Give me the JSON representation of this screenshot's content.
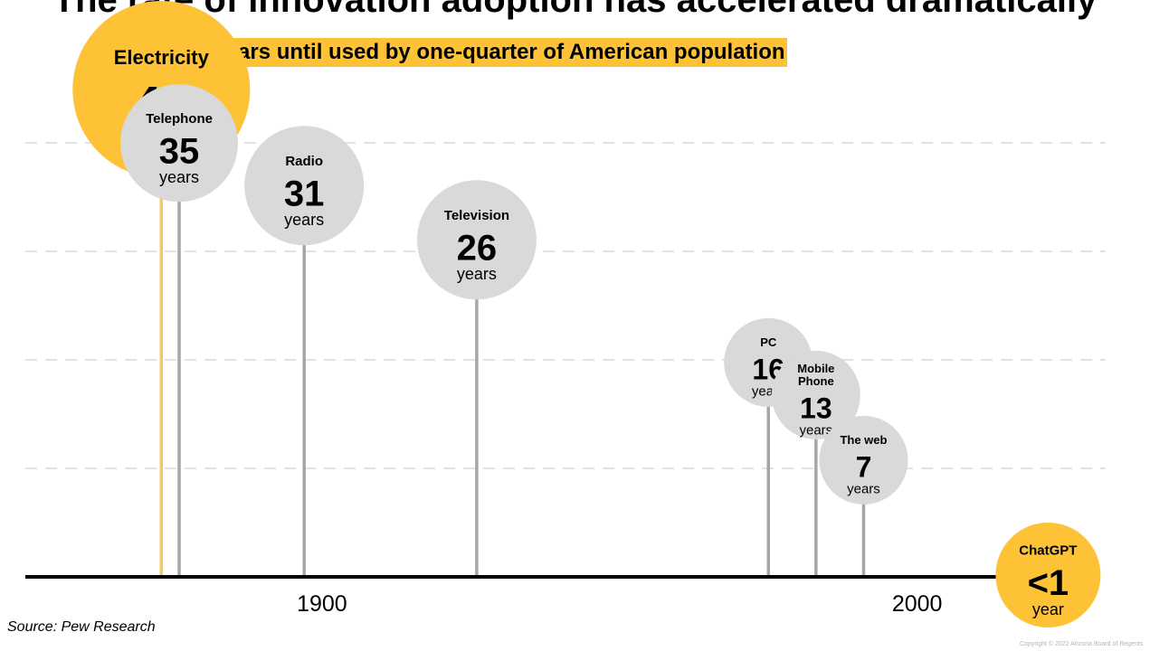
{
  "title": "The rate of innovation adoption has accelerated dramatically",
  "subtitle": "Years until used by one-quarter of American population",
  "source": "Source: Pew Research",
  "copyright": "Copyright © 2022 Arizona Board of Regents",
  "colors": {
    "highlight": "#fdc236",
    "bubble": "#d9d9d9",
    "stem": "#a6a6a6",
    "highlight_stem": "#f3c85c",
    "axis": "#000000",
    "gridline": "#d9d9d9"
  },
  "chart_data": {
    "type": "scatter",
    "title": "Years until used by one-quarter of American population",
    "xlabel": "",
    "ylabel": "",
    "x_ticks": [
      1900,
      2000
    ],
    "xlim": [
      1850,
      2030
    ],
    "ylim": [
      0,
      50
    ],
    "y_gridlines": [
      10,
      20,
      30,
      40
    ],
    "grid": "horizontal dashed",
    "series": [
      {
        "points": [
          {
            "label": "Electricity",
            "x": 1873,
            "y": 46,
            "value_text": "46",
            "unit": "years",
            "highlight": true
          },
          {
            "label": "Telephone",
            "x": 1876,
            "y": 35,
            "value_text": "35",
            "unit": "years",
            "highlight": false
          },
          {
            "label": "Radio",
            "x": 1897,
            "y": 31,
            "value_text": "31",
            "unit": "years",
            "highlight": false
          },
          {
            "label": "Television",
            "x": 1926,
            "y": 26,
            "value_text": "26",
            "unit": "years",
            "highlight": false
          },
          {
            "label": "PC",
            "x": 1975,
            "y": 16,
            "value_text": "16",
            "unit": "years",
            "highlight": false
          },
          {
            "label": "Mobile Phone",
            "x": 1983,
            "y": 13,
            "value_text": "13",
            "unit": "years",
            "highlight": false
          },
          {
            "label": "The web",
            "x": 1991,
            "y": 7,
            "value_text": "7",
            "unit": "years",
            "highlight": false
          },
          {
            "label": "ChatGPT",
            "x": 2022,
            "y": 0,
            "value_text": "<1",
            "unit": "year",
            "highlight": true
          }
        ]
      }
    ]
  }
}
